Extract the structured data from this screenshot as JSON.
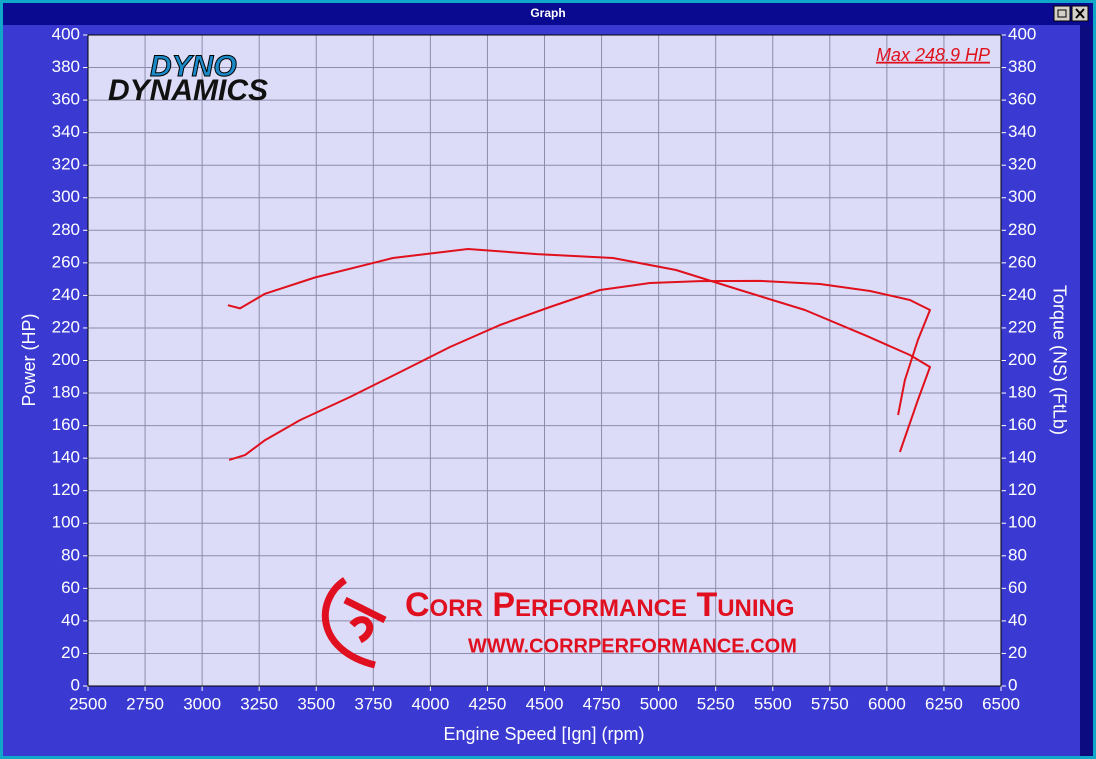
{
  "window_title": "Graph",
  "chart_data": {
    "type": "line",
    "xlabel": "Engine Speed [Ign] (rpm)",
    "ylabel": "Power (HP)",
    "y2label": "Torque (NS) (FtLb)",
    "annotation": "Max 248.9 HP",
    "logo": [
      "DYNO",
      "DYNAMICS"
    ],
    "watermark": [
      "Corr Performance Tuning",
      "WWW.CORRPERFORMANCE.COM"
    ],
    "xlim": [
      2500,
      6500
    ],
    "xticks": [
      2500,
      2750,
      3000,
      3250,
      3500,
      3750,
      4000,
      4250,
      4500,
      4750,
      5000,
      5250,
      5500,
      5750,
      6000,
      6250,
      6500
    ],
    "ylim": [
      0,
      400
    ],
    "yticks": [
      0,
      20,
      40,
      60,
      80,
      100,
      120,
      140,
      160,
      180,
      200,
      220,
      240,
      260,
      280,
      300,
      320,
      340,
      360,
      380,
      400
    ],
    "y2lim": [
      0,
      400
    ],
    "y2ticks": [
      0,
      20,
      40,
      60,
      80,
      100,
      120,
      140,
      160,
      180,
      200,
      220,
      240,
      260,
      280,
      300,
      320,
      340,
      360,
      380,
      400
    ],
    "grid": true,
    "series": [
      {
        "name": "Power",
        "color": "#e0101c",
        "x": [
          3118,
          3188,
          3275,
          3429,
          3648,
          3867,
          4086,
          4305,
          4524,
          4743,
          4962,
          5181,
          5444,
          5707,
          5926,
          6101,
          6189,
          6136,
          6079,
          6049
        ],
        "values": [
          138.9,
          141.9,
          151,
          163.4,
          177.6,
          192.9,
          208.3,
          221.8,
          232.9,
          243.3,
          247.6,
          248.8,
          248.9,
          247,
          242.7,
          237.2,
          231,
          212.6,
          188,
          166.5
        ]
      },
      {
        "name": "Torque",
        "color": "#e0101c",
        "axis": "y2",
        "x": [
          3113,
          3166,
          3275,
          3494,
          3836,
          4165,
          4467,
          4800,
          5076,
          5356,
          5641,
          5913,
          6101,
          6189,
          6136,
          6057
        ],
        "values": [
          234,
          232,
          241,
          251,
          263,
          268.5,
          265.4,
          263,
          255.6,
          243.3,
          231,
          215,
          203.4,
          196,
          175.7,
          143.8
        ]
      }
    ]
  }
}
